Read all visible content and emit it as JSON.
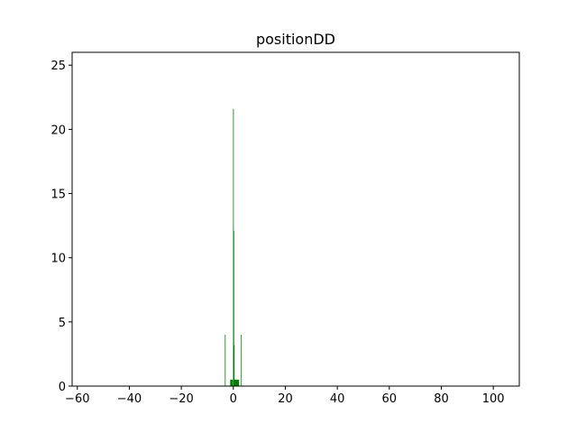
{
  "chart_data": {
    "type": "bar",
    "title": "positionDD",
    "xlabel": "",
    "ylabel": "",
    "xlim": [
      -62,
      110
    ],
    "ylim": [
      0,
      26
    ],
    "xticks": [
      -60,
      -40,
      -20,
      0,
      20,
      40,
      60,
      80,
      100
    ],
    "yticks": [
      0,
      5,
      10,
      15,
      20,
      25
    ],
    "grid": false,
    "bar_color": "#008000",
    "bins": [
      {
        "x0": -3.25,
        "x1": -3.05,
        "value": 4.0
      },
      {
        "x0": -1.2,
        "x1": -0.2,
        "value": 0.5
      },
      {
        "x0": -0.1,
        "x1": 0.05,
        "value": 21.6
      },
      {
        "x0": 0.05,
        "x1": 0.2,
        "value": 12.1
      },
      {
        "x0": 0.2,
        "x1": 0.35,
        "value": 3.2
      },
      {
        "x0": 0.35,
        "x1": 2.2,
        "value": 0.5
      },
      {
        "x0": 2.95,
        "x1": 3.15,
        "value": 4.0
      }
    ]
  }
}
